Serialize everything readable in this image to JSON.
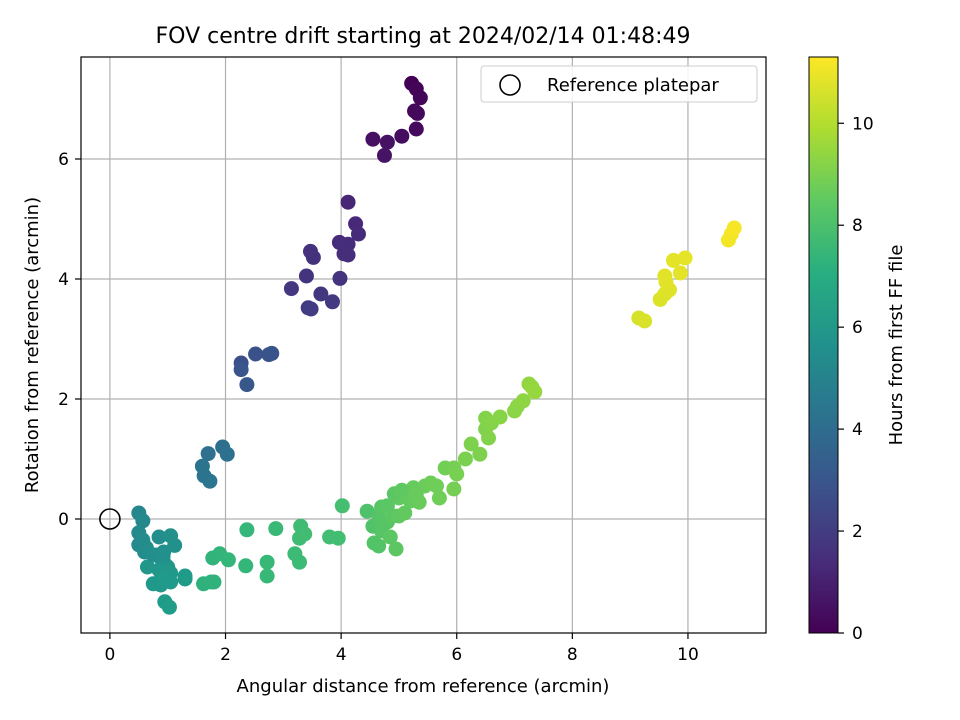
{
  "chart_data": {
    "type": "scatter",
    "title": "FOV centre drift starting at 2024/02/14 01:48:49",
    "xlabel": "Angular distance from reference (arcmin)",
    "ylabel": "Rotation from reference (arcmin)",
    "xlim": [
      -0.5,
      11.35
    ],
    "ylim": [
      -1.9,
      7.7
    ],
    "xticks": [
      0,
      2,
      4,
      6,
      8,
      10
    ],
    "yticks": [
      0,
      2,
      4,
      6
    ],
    "grid": true,
    "legend": {
      "position": "upper right",
      "entries": [
        {
          "label": "Reference platepar",
          "marker": "open-circle"
        }
      ]
    },
    "reference": {
      "x": 0,
      "y": 0
    },
    "colorbar": {
      "label": "Hours from first FF file",
      "colormap": "viridis",
      "range": [
        0,
        11.3
      ],
      "ticks": [
        0,
        2,
        4,
        6,
        8,
        10
      ]
    },
    "series": [
      {
        "points": [
          {
            "x": 5.22,
            "y": 7.26,
            "c": 0.0
          },
          {
            "x": 5.3,
            "y": 7.17,
            "c": 0.1
          },
          {
            "x": 5.37,
            "y": 7.02,
            "c": 0.15
          },
          {
            "x": 5.27,
            "y": 6.8,
            "c": 0.2
          },
          {
            "x": 5.32,
            "y": 6.76,
            "c": 0.25
          },
          {
            "x": 5.3,
            "y": 6.5,
            "c": 0.3
          },
          {
            "x": 5.05,
            "y": 6.38,
            "c": 0.4
          },
          {
            "x": 4.55,
            "y": 6.33,
            "c": 0.5
          },
          {
            "x": 4.8,
            "y": 6.28,
            "c": 0.55
          },
          {
            "x": 4.75,
            "y": 6.06,
            "c": 0.6
          },
          {
            "x": 4.12,
            "y": 5.28,
            "c": 1.2
          },
          {
            "x": 4.25,
            "y": 4.92,
            "c": 1.3
          },
          {
            "x": 4.3,
            "y": 4.75,
            "c": 1.35
          },
          {
            "x": 3.97,
            "y": 4.61,
            "c": 1.4
          },
          {
            "x": 4.12,
            "y": 4.58,
            "c": 1.45
          },
          {
            "x": 4.05,
            "y": 4.42,
            "c": 1.5
          },
          {
            "x": 4.12,
            "y": 4.4,
            "c": 1.5
          },
          {
            "x": 3.47,
            "y": 4.46,
            "c": 1.6
          },
          {
            "x": 3.52,
            "y": 4.36,
            "c": 1.65
          },
          {
            "x": 3.4,
            "y": 4.05,
            "c": 1.7
          },
          {
            "x": 3.98,
            "y": 4.01,
            "c": 1.7
          },
          {
            "x": 3.14,
            "y": 3.84,
            "c": 1.8
          },
          {
            "x": 3.65,
            "y": 3.75,
            "c": 1.85
          },
          {
            "x": 3.85,
            "y": 3.62,
            "c": 1.9
          },
          {
            "x": 3.43,
            "y": 3.52,
            "c": 1.95
          },
          {
            "x": 3.48,
            "y": 3.5,
            "c": 2.0
          },
          {
            "x": 2.27,
            "y": 2.6,
            "c": 2.8
          },
          {
            "x": 2.52,
            "y": 2.75,
            "c": 2.85
          },
          {
            "x": 2.75,
            "y": 2.74,
            "c": 2.9
          },
          {
            "x": 2.8,
            "y": 2.76,
            "c": 2.95
          },
          {
            "x": 2.27,
            "y": 2.49,
            "c": 3.0
          },
          {
            "x": 2.37,
            "y": 2.24,
            "c": 3.1
          },
          {
            "x": 1.95,
            "y": 1.2,
            "c": 4.1
          },
          {
            "x": 1.7,
            "y": 1.09,
            "c": 4.15
          },
          {
            "x": 2.03,
            "y": 1.08,
            "c": 4.2
          },
          {
            "x": 1.6,
            "y": 0.88,
            "c": 4.3
          },
          {
            "x": 1.63,
            "y": 0.72,
            "c": 4.35
          },
          {
            "x": 1.73,
            "y": 0.63,
            "c": 4.4
          },
          {
            "x": 0.5,
            "y": 0.1,
            "c": 5.2
          },
          {
            "x": 0.57,
            "y": -0.03,
            "c": 5.3
          },
          {
            "x": 0.5,
            "y": -0.23,
            "c": 5.35
          },
          {
            "x": 0.5,
            "y": -0.43,
            "c": 5.4
          },
          {
            "x": 0.57,
            "y": -0.35,
            "c": 5.45
          },
          {
            "x": 0.63,
            "y": -0.48,
            "c": 5.5
          },
          {
            "x": 0.85,
            "y": -0.3,
            "c": 5.55
          },
          {
            "x": 0.93,
            "y": -0.55,
            "c": 5.6
          },
          {
            "x": 1.05,
            "y": -0.28,
            "c": 5.65
          },
          {
            "x": 1.12,
            "y": -0.44,
            "c": 5.7
          },
          {
            "x": 0.8,
            "y": -0.6,
            "c": 5.75
          },
          {
            "x": 0.88,
            "y": -0.65,
            "c": 5.8
          },
          {
            "x": 0.95,
            "y": -0.75,
            "c": 5.85
          },
          {
            "x": 1.0,
            "y": -0.8,
            "c": 5.9
          },
          {
            "x": 0.85,
            "y": -0.85,
            "c": 5.9
          },
          {
            "x": 0.65,
            "y": -0.8,
            "c": 5.95
          },
          {
            "x": 1.05,
            "y": -0.9,
            "c": 6.0
          },
          {
            "x": 0.9,
            "y": -0.95,
            "c": 6.0
          },
          {
            "x": 0.75,
            "y": -1.08,
            "c": 6.05
          },
          {
            "x": 0.88,
            "y": -1.1,
            "c": 6.05
          },
          {
            "x": 0.95,
            "y": -1.0,
            "c": 6.1
          },
          {
            "x": 1.05,
            "y": -1.05,
            "c": 6.1
          },
          {
            "x": 1.3,
            "y": -0.95,
            "c": 6.15
          },
          {
            "x": 1.3,
            "y": -1.0,
            "c": 6.15
          },
          {
            "x": 0.95,
            "y": -1.38,
            "c": 6.2
          },
          {
            "x": 1.03,
            "y": -1.47,
            "c": 6.25
          },
          {
            "x": 0.6,
            "y": -0.55,
            "c": 5.5
          },
          {
            "x": 0.75,
            "y": -0.6,
            "c": 5.6
          },
          {
            "x": 0.92,
            "y": -0.62,
            "c": 5.7
          },
          {
            "x": 1.62,
            "y": -1.08,
            "c": 7.2
          },
          {
            "x": 1.75,
            "y": -1.05,
            "c": 7.25
          },
          {
            "x": 1.8,
            "y": -1.05,
            "c": 7.3
          },
          {
            "x": 1.78,
            "y": -0.65,
            "c": 7.35
          },
          {
            "x": 1.9,
            "y": -0.58,
            "c": 7.4
          },
          {
            "x": 2.05,
            "y": -0.68,
            "c": 7.45
          },
          {
            "x": 2.35,
            "y": -0.78,
            "c": 7.5
          },
          {
            "x": 2.37,
            "y": -0.18,
            "c": 7.55
          },
          {
            "x": 2.72,
            "y": -0.72,
            "c": 7.6
          },
          {
            "x": 2.72,
            "y": -0.95,
            "c": 7.6
          },
          {
            "x": 2.87,
            "y": -0.16,
            "c": 7.65
          },
          {
            "x": 3.2,
            "y": -0.58,
            "c": 7.7
          },
          {
            "x": 3.28,
            "y": -0.72,
            "c": 7.7
          },
          {
            "x": 3.28,
            "y": -0.32,
            "c": 7.75
          },
          {
            "x": 3.3,
            "y": -0.12,
            "c": 7.75
          },
          {
            "x": 3.37,
            "y": -0.25,
            "c": 7.8
          },
          {
            "x": 3.8,
            "y": -0.3,
            "c": 7.85
          },
          {
            "x": 3.95,
            "y": -0.32,
            "c": 7.85
          },
          {
            "x": 4.02,
            "y": 0.22,
            "c": 7.9
          },
          {
            "x": 4.45,
            "y": 0.13,
            "c": 8.1
          },
          {
            "x": 4.55,
            "y": -0.12,
            "c": 8.15
          },
          {
            "x": 4.57,
            "y": -0.4,
            "c": 8.2
          },
          {
            "x": 4.65,
            "y": -0.45,
            "c": 8.2
          },
          {
            "x": 4.7,
            "y": -0.2,
            "c": 8.25
          },
          {
            "x": 4.65,
            "y": 0.05,
            "c": 8.25
          },
          {
            "x": 4.7,
            "y": 0.2,
            "c": 8.3
          },
          {
            "x": 4.8,
            "y": -0.05,
            "c": 8.3
          },
          {
            "x": 4.8,
            "y": 0.22,
            "c": 8.35
          },
          {
            "x": 4.85,
            "y": -0.3,
            "c": 8.35
          },
          {
            "x": 4.9,
            "y": 0.05,
            "c": 8.4
          },
          {
            "x": 4.95,
            "y": -0.5,
            "c": 8.4
          },
          {
            "x": 5.0,
            "y": 0.05,
            "c": 8.45
          },
          {
            "x": 5.0,
            "y": 0.35,
            "c": 8.5
          },
          {
            "x": 5.1,
            "y": 0.1,
            "c": 8.5
          },
          {
            "x": 5.15,
            "y": 0.45,
            "c": 8.55
          },
          {
            "x": 5.2,
            "y": 0.3,
            "c": 8.55
          },
          {
            "x": 5.25,
            "y": 0.52,
            "c": 8.6
          },
          {
            "x": 5.3,
            "y": 0.4,
            "c": 8.65
          },
          {
            "x": 5.35,
            "y": 0.28,
            "c": 8.65
          },
          {
            "x": 5.45,
            "y": 0.55,
            "c": 8.7
          },
          {
            "x": 5.55,
            "y": 0.6,
            "c": 8.75
          },
          {
            "x": 5.65,
            "y": 0.55,
            "c": 8.8
          },
          {
            "x": 5.7,
            "y": 0.35,
            "c": 8.8
          },
          {
            "x": 5.8,
            "y": 0.85,
            "c": 8.85
          },
          {
            "x": 5.95,
            "y": 0.5,
            "c": 8.9
          },
          {
            "x": 5.95,
            "y": 0.85,
            "c": 8.9
          },
          {
            "x": 6.0,
            "y": 0.75,
            "c": 8.95
          },
          {
            "x": 6.15,
            "y": 1.0,
            "c": 9.0
          },
          {
            "x": 6.25,
            "y": 1.25,
            "c": 9.05
          },
          {
            "x": 6.4,
            "y": 1.08,
            "c": 9.05
          },
          {
            "x": 6.5,
            "y": 1.5,
            "c": 9.1
          },
          {
            "x": 6.5,
            "y": 1.68,
            "c": 9.15
          },
          {
            "x": 6.55,
            "y": 1.35,
            "c": 9.15
          },
          {
            "x": 6.6,
            "y": 1.6,
            "c": 9.2
          },
          {
            "x": 6.75,
            "y": 1.7,
            "c": 9.25
          },
          {
            "x": 7.0,
            "y": 1.8,
            "c": 9.3
          },
          {
            "x": 7.05,
            "y": 1.88,
            "c": 9.3
          },
          {
            "x": 7.15,
            "y": 1.97,
            "c": 9.35
          },
          {
            "x": 7.25,
            "y": 2.25,
            "c": 9.4
          },
          {
            "x": 7.3,
            "y": 2.2,
            "c": 9.45
          },
          {
            "x": 7.35,
            "y": 2.12,
            "c": 9.5
          },
          {
            "x": 4.92,
            "y": 0.42,
            "c": 8.4
          },
          {
            "x": 5.05,
            "y": 0.48,
            "c": 8.45
          },
          {
            "x": 9.15,
            "y": 3.35,
            "c": 10.6
          },
          {
            "x": 9.25,
            "y": 3.3,
            "c": 10.65
          },
          {
            "x": 9.52,
            "y": 3.66,
            "c": 10.7
          },
          {
            "x": 9.6,
            "y": 3.75,
            "c": 10.75
          },
          {
            "x": 9.68,
            "y": 3.82,
            "c": 10.75
          },
          {
            "x": 9.62,
            "y": 3.95,
            "c": 10.8
          },
          {
            "x": 9.6,
            "y": 4.05,
            "c": 10.8
          },
          {
            "x": 9.75,
            "y": 4.31,
            "c": 10.85
          },
          {
            "x": 9.87,
            "y": 4.1,
            "c": 10.85
          },
          {
            "x": 9.95,
            "y": 4.35,
            "c": 10.9
          },
          {
            "x": 10.7,
            "y": 4.65,
            "c": 11.1
          },
          {
            "x": 10.75,
            "y": 4.75,
            "c": 11.15
          },
          {
            "x": 10.8,
            "y": 4.85,
            "c": 11.2
          }
        ]
      }
    ]
  }
}
